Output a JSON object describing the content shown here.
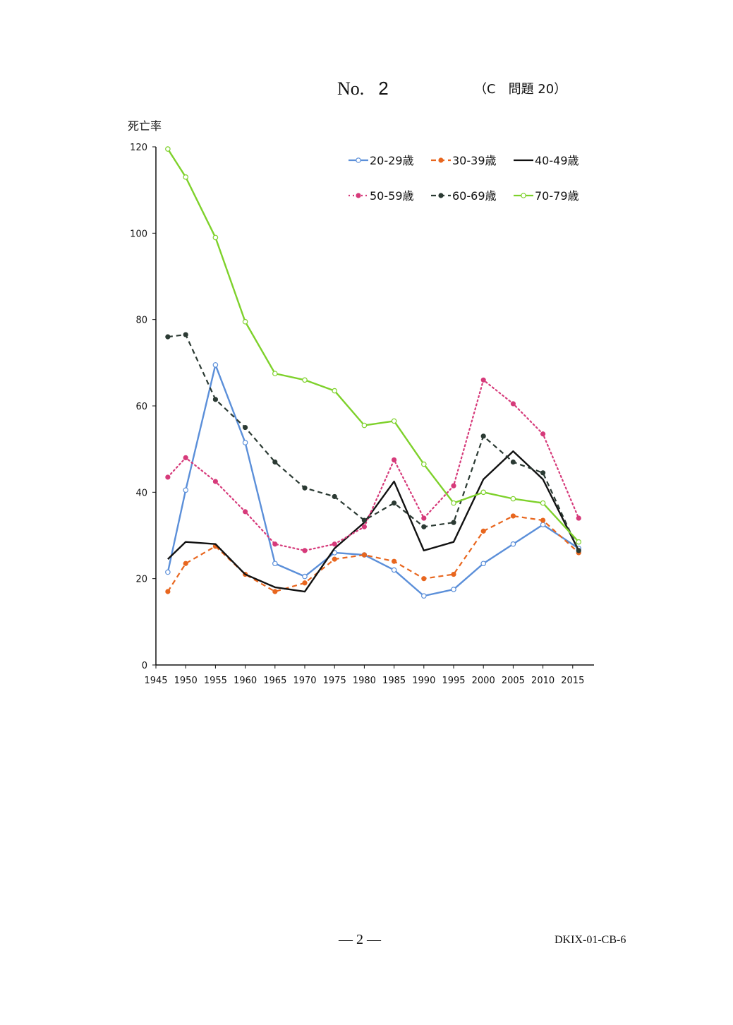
{
  "header": {
    "no_label": "No.",
    "no_value": "2",
    "reference": "（C　問題 20）"
  },
  "footer": {
    "page": "— 2 —",
    "code": "DKIX-01-CB-6"
  },
  "chart_data": {
    "type": "line",
    "title": "",
    "xlabel": "",
    "ylabel": "死亡率",
    "xlim": [
      1945,
      2018
    ],
    "ylim": [
      0,
      120
    ],
    "x_ticks": [
      1945,
      1950,
      1955,
      1960,
      1965,
      1970,
      1975,
      1980,
      1985,
      1990,
      1995,
      2000,
      2005,
      2010,
      2015
    ],
    "y_ticks": [
      0,
      20,
      40,
      60,
      80,
      100,
      120
    ],
    "x": [
      1947,
      1950,
      1955,
      1960,
      1965,
      1970,
      1975,
      1980,
      1985,
      1990,
      1995,
      2000,
      2005,
      2010,
      2016
    ],
    "legend_position": "top-right",
    "series": [
      {
        "name": "20-29歳",
        "color": "#5b8fd9",
        "dash": "solid",
        "marker": "open-circle",
        "values": [
          21.5,
          40.5,
          69.5,
          51.5,
          23.5,
          20.5,
          26.0,
          25.5,
          22.0,
          16.0,
          17.5,
          23.5,
          28.0,
          32.5,
          27.0
        ]
      },
      {
        "name": "30-39歳",
        "color": "#e8661e",
        "dash": "dashed",
        "marker": "dot",
        "values": [
          17.0,
          23.5,
          27.5,
          21.0,
          17.0,
          19.0,
          24.5,
          25.5,
          24.0,
          20.0,
          21.0,
          31.0,
          34.5,
          33.5,
          26.0
        ]
      },
      {
        "name": "40-49歳",
        "color": "#111111",
        "dash": "solid",
        "marker": "none",
        "values": [
          24.5,
          28.5,
          28.0,
          21.0,
          18.0,
          17.0,
          27.0,
          33.0,
          42.5,
          26.5,
          28.5,
          43.0,
          49.5,
          43.0,
          26.5
        ]
      },
      {
        "name": "50-59歳",
        "color": "#d63a7a",
        "dash": "dotted",
        "marker": "dot",
        "values": [
          43.5,
          48.0,
          42.5,
          35.5,
          28.0,
          26.5,
          28.0,
          32.0,
          47.5,
          34.0,
          41.5,
          66.0,
          60.5,
          53.5,
          34.0
        ]
      },
      {
        "name": "60-69歳",
        "color": "#2b3a33",
        "dash": "dashed",
        "marker": "dot",
        "values": [
          76.0,
          76.5,
          61.5,
          55.0,
          47.0,
          41.0,
          39.0,
          33.5,
          37.5,
          32.0,
          33.0,
          53.0,
          47.0,
          44.5,
          26.5
        ]
      },
      {
        "name": "70-79歳",
        "color": "#7ed12b",
        "dash": "solid",
        "marker": "open-circle",
        "values": [
          119.5,
          113.0,
          99.0,
          79.5,
          67.5,
          66.0,
          63.5,
          55.5,
          56.5,
          46.5,
          37.5,
          40.0,
          38.5,
          37.5,
          28.5
        ]
      }
    ]
  }
}
